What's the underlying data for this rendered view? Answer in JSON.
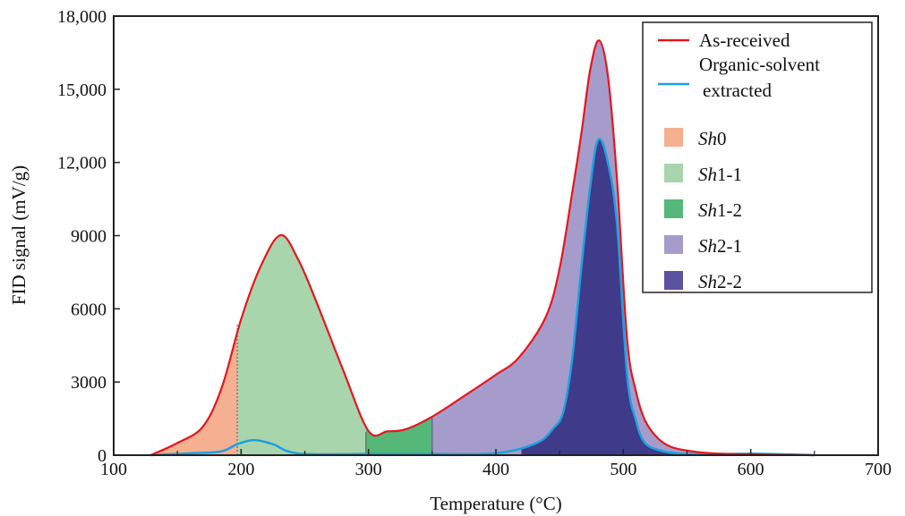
{
  "chart_data": {
    "type": "area",
    "xlabel": "Temperature (°C)",
    "ylabel": "FID signal (mV/g)",
    "xlim": [
      100,
      700
    ],
    "ylim": [
      0,
      18000
    ],
    "xticks": [
      100,
      200,
      300,
      400,
      500,
      600,
      700
    ],
    "xtick_labels": [
      "100",
      "200",
      "300",
      "400",
      "500",
      "600",
      "700"
    ],
    "yticks": [
      0,
      3000,
      6000,
      9000,
      12000,
      15000,
      18000
    ],
    "ytick_labels": [
      "0",
      "3000",
      "6000",
      "9000",
      "12,000",
      "15,000",
      "18,000"
    ],
    "grid": false,
    "legend_position": "top-right",
    "series": [
      {
        "name": "As-received",
        "color": "#e8141c",
        "x": [
          129,
          150,
          170,
          185,
          200,
          215,
          231,
          245,
          259,
          280,
          300,
          315,
          329,
          350,
          376,
          400,
          418,
          439,
          450,
          460,
          467,
          474,
          481,
          488,
          495,
          503,
          510,
          517,
          527,
          538,
          555,
          573,
          600,
          650
        ],
        "y": [
          0,
          500,
          1170,
          2800,
          5570,
          7700,
          9020,
          8000,
          6300,
          3500,
          990,
          980,
          1060,
          1580,
          2460,
          3300,
          4000,
          5650,
          7660,
          10800,
          13160,
          15800,
          17000,
          15500,
          11330,
          4730,
          2600,
          1430,
          700,
          330,
          150,
          70,
          40,
          0
        ]
      },
      {
        "name": "Organic-solvent extracted",
        "color": "#1ca0e0",
        "x": [
          129,
          160,
          184,
          197,
          210,
          225,
          245,
          300,
          350,
          400,
          432,
          445,
          453,
          460,
          467,
          474,
          480,
          487,
          495,
          503,
          510,
          517,
          530,
          545,
          570,
          600,
          630,
          650
        ],
        "y": [
          0,
          80,
          150,
          450,
          620,
          450,
          70,
          50,
          50,
          80,
          500,
          1100,
          1800,
          4000,
          7660,
          11000,
          12900,
          12200,
          9500,
          3260,
          1400,
          500,
          180,
          70,
          40,
          60,
          30,
          0
        ]
      }
    ],
    "regions": [
      {
        "name": "Sh0",
        "from": 129,
        "to": 197,
        "color": "#f4b090"
      },
      {
        "name": "Sh1-1",
        "from": 197,
        "to": 298,
        "color": "#a8d5ab"
      },
      {
        "name": "Sh1-2",
        "from": 298,
        "to": 350,
        "color": "#55b878"
      },
      {
        "name": "Sh2-1",
        "from": 350,
        "to": 650,
        "color": "#a69ccb"
      },
      {
        "name": "Sh2-2",
        "from": 420,
        "to": 560,
        "color": "#3f3a8a"
      }
    ],
    "legend": [
      {
        "label": "As-received",
        "kind": "line",
        "color": "#e8141c"
      },
      {
        "label": "Organic-solvent",
        "label2": "extracted",
        "kind": "line",
        "color": "#1ca0e0"
      },
      {
        "prefix": "Sh",
        "suffix": "0",
        "kind": "box",
        "color": "#f4b090"
      },
      {
        "prefix": "Sh",
        "suffix": "1-1",
        "kind": "box",
        "color": "#a8d5ab"
      },
      {
        "prefix": "Sh",
        "suffix": "1-2",
        "kind": "box",
        "color": "#55b878"
      },
      {
        "prefix": "Sh",
        "suffix": "2-1",
        "kind": "box",
        "color": "#a69ccb"
      },
      {
        "prefix": "Sh",
        "suffix": "2-2",
        "kind": "box",
        "color": "#5a52a0"
      }
    ]
  }
}
